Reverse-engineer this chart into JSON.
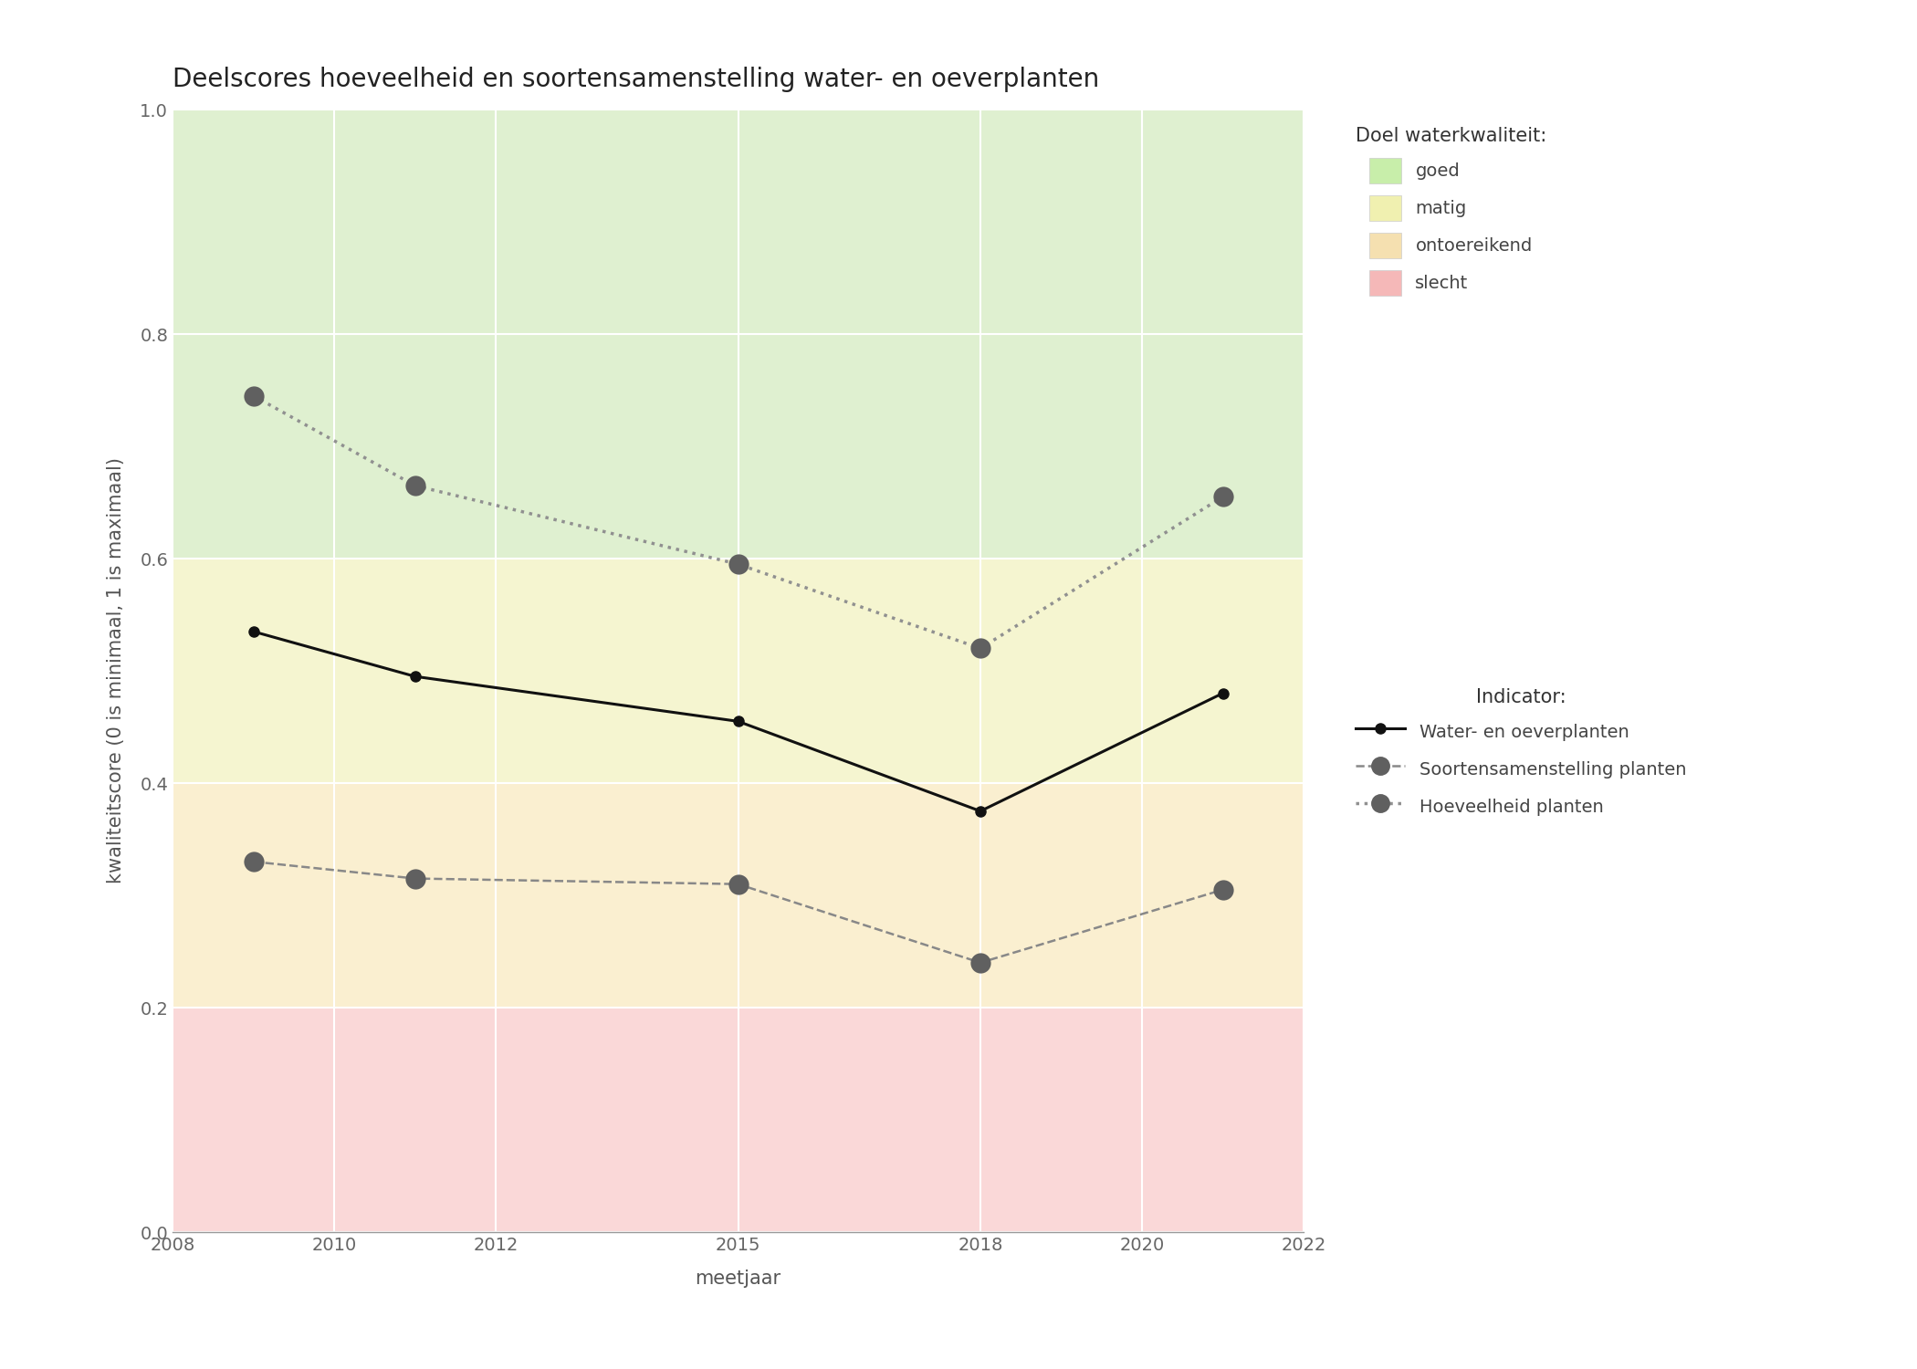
{
  "title": "Deelscores hoeveelheid en soortensamenstelling water- en oeverplanten",
  "xlabel": "meetjaar",
  "ylabel": "kwaliteitscore (0 is minimaal, 1 is maximaal)",
  "xlim": [
    2008,
    2022
  ],
  "ylim": [
    0.0,
    1.0
  ],
  "xticks": [
    2008,
    2010,
    2012,
    2015,
    2018,
    2020,
    2022
  ],
  "yticks": [
    0.0,
    0.2,
    0.4,
    0.6,
    0.8,
    1.0
  ],
  "bg_colors": {
    "goed": {
      "ymin": 0.6,
      "ymax": 1.0,
      "color": "#dff0d0"
    },
    "matig": {
      "ymin": 0.4,
      "ymax": 0.6,
      "color": "#f5f5d0"
    },
    "ontoereikend": {
      "ymin": 0.2,
      "ymax": 0.4,
      "color": "#faefd0"
    },
    "slecht": {
      "ymin": 0.0,
      "ymax": 0.2,
      "color": "#fad8d8"
    }
  },
  "series": {
    "water_oever": {
      "label": "Water- en oeverplanten",
      "years": [
        2009,
        2011,
        2015,
        2018,
        2021
      ],
      "values": [
        0.535,
        0.495,
        0.455,
        0.375,
        0.48
      ],
      "color": "#111111",
      "linestyle": "solid",
      "linewidth": 2.2,
      "markersize": 8,
      "marker": "o",
      "markerfacecolor": "#111111",
      "markeredgecolor": "#111111",
      "zorder": 5
    },
    "soortensamenstelling": {
      "label": "Soortensamenstelling planten",
      "years": [
        2009,
        2011,
        2015,
        2018,
        2021
      ],
      "values": [
        0.33,
        0.315,
        0.31,
        0.24,
        0.305
      ],
      "color": "#888888",
      "linestyle": "dashed",
      "linewidth": 1.8,
      "markersize": 16,
      "marker": "o",
      "markerfacecolor": "#606060",
      "markeredgecolor": "#606060",
      "zorder": 4
    },
    "hoeveelheid": {
      "label": "Hoeveelheid planten",
      "years": [
        2009,
        2011,
        2015,
        2018,
        2021
      ],
      "values": [
        0.745,
        0.665,
        0.595,
        0.52,
        0.655
      ],
      "color": "#909090",
      "linestyle": "dotted",
      "linewidth": 2.5,
      "markersize": 16,
      "marker": "o",
      "markerfacecolor": "#606060",
      "markeredgecolor": "#606060",
      "zorder": 4
    }
  },
  "legend_bg_labels": [
    "goed",
    "matig",
    "ontoereikend",
    "slecht"
  ],
  "legend_bg_colors": [
    "#c8eeaa",
    "#f0f0b0",
    "#f5e0b0",
    "#f5b8b8"
  ],
  "background_color": "#ffffff",
  "title_fontsize": 20,
  "label_fontsize": 15,
  "tick_fontsize": 14,
  "legend_fontsize": 14,
  "legend_title_fontsize": 15
}
